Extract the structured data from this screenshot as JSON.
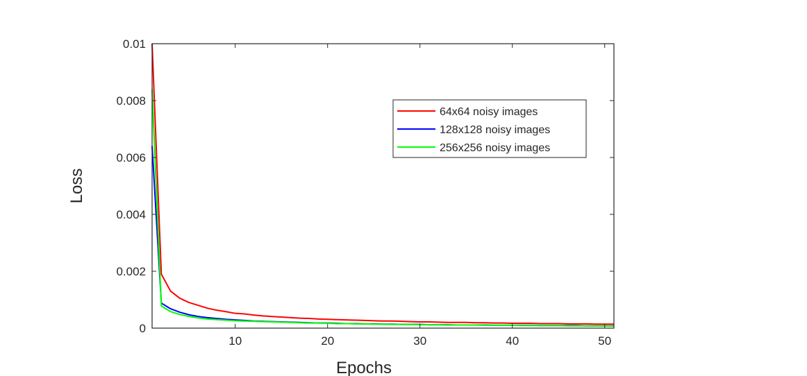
{
  "chart_data": {
    "type": "line",
    "title": "",
    "xlabel": "Epochs",
    "ylabel": "Loss",
    "xlim": [
      1,
      51
    ],
    "ylim": [
      0,
      0.01
    ],
    "xticks": [
      10,
      20,
      30,
      40,
      50
    ],
    "xtick_labels": [
      "10",
      "20",
      "30",
      "40",
      "50"
    ],
    "yticks": [
      0,
      0.002,
      0.004,
      0.006,
      0.008,
      0.01
    ],
    "ytick_labels": [
      "0",
      "0.002",
      "0.004",
      "0.006",
      "0.008",
      "0.01"
    ],
    "grid": false,
    "legend_position": "upper-right",
    "series": [
      {
        "name": "64x64 noisy images",
        "color": "#ff0000",
        "x": [
          1,
          2,
          3,
          4,
          5,
          6,
          7,
          8,
          9,
          10,
          11,
          12,
          13,
          14,
          15,
          16,
          17,
          18,
          19,
          20,
          21,
          22,
          23,
          24,
          25,
          26,
          27,
          28,
          29,
          30,
          31,
          32,
          33,
          34,
          35,
          36,
          37,
          38,
          39,
          40,
          41,
          42,
          43,
          44,
          45,
          46,
          47,
          48,
          49,
          50,
          51
        ],
        "y": [
          0.01,
          0.0019,
          0.0013,
          0.00105,
          0.0009,
          0.0008,
          0.0007,
          0.00063,
          0.00058,
          0.00052,
          0.0005,
          0.00046,
          0.00043,
          0.00041,
          0.00039,
          0.00037,
          0.00035,
          0.00034,
          0.00032,
          0.00031,
          0.0003,
          0.00029,
          0.00028,
          0.00027,
          0.00026,
          0.00025,
          0.00025,
          0.00024,
          0.00023,
          0.00022,
          0.00022,
          0.00021,
          0.0002,
          0.0002,
          0.0002,
          0.00019,
          0.00019,
          0.00018,
          0.00018,
          0.00017,
          0.00017,
          0.00017,
          0.00016,
          0.00016,
          0.00016,
          0.00015,
          0.00015,
          0.00015,
          0.00014,
          0.00014,
          0.00014
        ]
      },
      {
        "name": "128x128 noisy images",
        "color": "#0000ff",
        "x": [
          1,
          2,
          3,
          4,
          5,
          6,
          7,
          8,
          9,
          10,
          11,
          12,
          13,
          14,
          15,
          16,
          17,
          18,
          19,
          20,
          21,
          22,
          23,
          24,
          25,
          26,
          27,
          28,
          29,
          30,
          31,
          32,
          33,
          34,
          35,
          36,
          37,
          38,
          39,
          40,
          41,
          42,
          43,
          44,
          45,
          46,
          47,
          48,
          49,
          50,
          51
        ],
        "y": [
          0.0064,
          0.00088,
          0.00068,
          0.00056,
          0.00047,
          0.00041,
          0.00037,
          0.00034,
          0.00031,
          0.00029,
          0.00027,
          0.00025,
          0.00024,
          0.00023,
          0.00022,
          0.00021,
          0.0002,
          0.00019,
          0.00018,
          0.00018,
          0.00017,
          0.00016,
          0.00016,
          0.00015,
          0.00015,
          0.00014,
          0.00014,
          0.00013,
          0.00013,
          0.00013,
          0.00012,
          0.00012,
          0.00012,
          0.00011,
          0.00011,
          0.00011,
          0.00011,
          0.0001,
          0.0001,
          0.0001,
          0.0001,
          0.0001,
          9e-05,
          9e-05,
          9e-05,
          9e-05,
          9e-05,
          8e-05,
          8e-05,
          8e-05,
          8e-05
        ]
      },
      {
        "name": "256x256 noisy images",
        "color": "#00ff00",
        "x": [
          1,
          2,
          3,
          4,
          5,
          6,
          7,
          8,
          9,
          10,
          11,
          12,
          13,
          14,
          15,
          16,
          17,
          18,
          19,
          20,
          21,
          22,
          23,
          24,
          25,
          26,
          27,
          28,
          29,
          30,
          31,
          32,
          33,
          34,
          35,
          36,
          37,
          38,
          39,
          40,
          41,
          42,
          43,
          44,
          45,
          46,
          47,
          48,
          49,
          50,
          51
        ],
        "y": [
          0.0084,
          0.00078,
          0.00058,
          0.00048,
          0.00041,
          0.00036,
          0.00032,
          0.0003,
          0.00028,
          0.00026,
          0.00025,
          0.00024,
          0.00023,
          0.00022,
          0.00021,
          0.0002,
          0.00019,
          0.00018,
          0.00018,
          0.00017,
          0.00016,
          0.00016,
          0.00015,
          0.00015,
          0.00014,
          0.00014,
          0.00013,
          0.00013,
          0.00013,
          0.00012,
          0.00012,
          0.00012,
          0.00011,
          0.00011,
          0.00011,
          0.00011,
          0.0001,
          0.0001,
          0.0001,
          0.0001,
          9e-05,
          9e-05,
          9e-05,
          9e-05,
          9e-05,
          8e-05,
          8e-05,
          8e-05,
          8e-05,
          8e-05,
          7e-05
        ]
      }
    ]
  }
}
